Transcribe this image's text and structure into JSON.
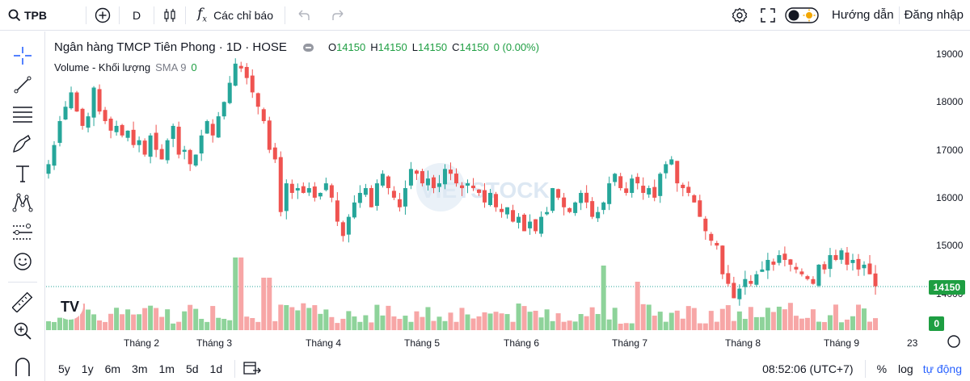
{
  "toolbar": {
    "symbol": "TPB",
    "interval": "D",
    "indicators_label": "Các chỉ báo",
    "guide_label": "Hướng dẫn",
    "login_label": "Đăng nhập"
  },
  "legend": {
    "title": "Ngân hàng TMCP Tiên Phong · 1D · HOSE",
    "o_label": "O",
    "o_value": "14150",
    "h_label": "H",
    "h_value": "14150",
    "l_label": "L",
    "l_value": "14150",
    "c_label": "C",
    "c_value": "14150",
    "change": "0 (0.00%)",
    "volume_label": "Volume - Khối lượng",
    "sma_label": "SMA 9",
    "volume_value": "0"
  },
  "price_axis": [
    "19000",
    "18000",
    "17000",
    "16000",
    "15000",
    "14000"
  ],
  "last_price": "14150",
  "volume_tag": "0",
  "time_axis": [
    "Tháng 2",
    "Tháng 3",
    "Tháng 4",
    "Tháng 5",
    "Tháng 6",
    "Tháng 7",
    "Tháng 8",
    "Tháng 9",
    "23"
  ],
  "ranges": [
    "5y",
    "1y",
    "6m",
    "3m",
    "1m",
    "5d",
    "1d"
  ],
  "bottom_right": {
    "clock": "08:52:06 (UTC+7)",
    "percent_label": "%",
    "log_label": "log",
    "auto_label": "tự động"
  },
  "watermark": "VIETSTOCK",
  "colors": {
    "up": "#26a69a",
    "down": "#ef5350",
    "vol_up": "#8ed39a",
    "vol_down": "#f7a6a6",
    "tag": "#1e9e42"
  },
  "chart_data": {
    "type": "candlestick",
    "series": [
      {
        "name": "price",
        "close": [
          16700,
          17100,
          17600,
          17900,
          18200,
          17800,
          17500,
          17700,
          18300,
          17800,
          17600,
          17400,
          17500,
          17300,
          17400,
          17100,
          17200,
          16900,
          17300,
          17000,
          16800,
          17200,
          17500,
          16900,
          17000,
          16700,
          16900,
          17300,
          17600,
          17300,
          17700,
          18000,
          18400,
          18800,
          18700,
          18500,
          18200,
          17900,
          17600,
          17000,
          16800,
          15700,
          16300,
          16100,
          16200,
          16100,
          16200,
          16000,
          16100,
          16300,
          16000,
          15500,
          15200,
          15600,
          15900,
          16100,
          16200,
          15800,
          16300,
          16500,
          16200,
          16000,
          15800,
          16200,
          16600,
          16500,
          16300,
          16400,
          16200,
          16300,
          16600,
          16500,
          16300,
          16200,
          16300,
          16200,
          16100,
          15900,
          16100,
          15800,
          15700,
          15800,
          15500,
          15600,
          15300,
          15500,
          15300,
          15600,
          15700,
          16200,
          16000,
          15800,
          15700,
          15900,
          16100,
          15900,
          15600,
          15700,
          15900,
          16300,
          16500,
          16200,
          16100,
          16400,
          16300,
          16100,
          16200,
          16000,
          16500,
          16700,
          16800,
          16300,
          16200,
          16100,
          15900,
          15600,
          15300,
          15100,
          15000,
          14400,
          14200,
          13900,
          14100,
          14300,
          14200,
          14400,
          14500,
          14700,
          14600,
          14800,
          14700,
          14600,
          14500,
          14400,
          14300,
          14200,
          14600,
          14500,
          14800,
          14700,
          14900,
          14600,
          14700,
          14500,
          14600,
          14400,
          14150
        ]
      }
    ],
    "ylim": [
      13900,
      19200
    ]
  }
}
